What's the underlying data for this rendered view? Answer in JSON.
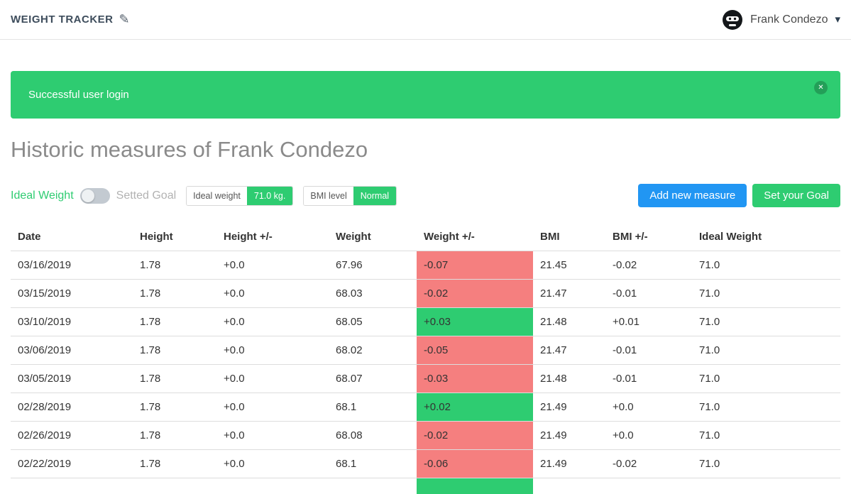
{
  "header": {
    "app_title": "WEIGHT TRACKER",
    "user_name": "Frank Condezo"
  },
  "icons": {
    "edit": "✎",
    "close": "✕",
    "chevron_down": "▾"
  },
  "alert": {
    "message": "Successful user login"
  },
  "page": {
    "title": "Historic measures of Frank Condezo"
  },
  "controls": {
    "ideal_weight_toggle_label": "Ideal Weight",
    "setted_goal_toggle_label": "Setted Goal",
    "ideal_weight_key": "Ideal weight",
    "ideal_weight_value": "71.0 kg.",
    "bmi_key": "BMI level",
    "bmi_value": "Normal",
    "add_measure_button": "Add new measure",
    "set_goal_button": "Set your Goal"
  },
  "table": {
    "columns": [
      "Date",
      "Height",
      "Height +/-",
      "Weight",
      "Weight +/-",
      "BMI",
      "BMI +/-",
      "Ideal Weight"
    ],
    "rows": [
      {
        "date": "03/16/2019",
        "height": "1.78",
        "height_diff": "+0.0",
        "weight": "67.96",
        "weight_diff": "-0.07",
        "weight_diff_color": "red",
        "bmi": "21.45",
        "bmi_diff": "-0.02",
        "ideal_weight": "71.0"
      },
      {
        "date": "03/15/2019",
        "height": "1.78",
        "height_diff": "+0.0",
        "weight": "68.03",
        "weight_diff": "-0.02",
        "weight_diff_color": "red",
        "bmi": "21.47",
        "bmi_diff": "-0.01",
        "ideal_weight": "71.0"
      },
      {
        "date": "03/10/2019",
        "height": "1.78",
        "height_diff": "+0.0",
        "weight": "68.05",
        "weight_diff": "+0.03",
        "weight_diff_color": "green",
        "bmi": "21.48",
        "bmi_diff": "+0.01",
        "ideal_weight": "71.0"
      },
      {
        "date": "03/06/2019",
        "height": "1.78",
        "height_diff": "+0.0",
        "weight": "68.02",
        "weight_diff": "-0.05",
        "weight_diff_color": "red",
        "bmi": "21.47",
        "bmi_diff": "-0.01",
        "ideal_weight": "71.0"
      },
      {
        "date": "03/05/2019",
        "height": "1.78",
        "height_diff": "+0.0",
        "weight": "68.07",
        "weight_diff": "-0.03",
        "weight_diff_color": "red",
        "bmi": "21.48",
        "bmi_diff": "-0.01",
        "ideal_weight": "71.0"
      },
      {
        "date": "02/28/2019",
        "height": "1.78",
        "height_diff": "+0.0",
        "weight": "68.1",
        "weight_diff": "+0.02",
        "weight_diff_color": "green",
        "bmi": "21.49",
        "bmi_diff": "+0.0",
        "ideal_weight": "71.0"
      },
      {
        "date": "02/26/2019",
        "height": "1.78",
        "height_diff": "+0.0",
        "weight": "68.08",
        "weight_diff": "-0.02",
        "weight_diff_color": "red",
        "bmi": "21.49",
        "bmi_diff": "+0.0",
        "ideal_weight": "71.0"
      },
      {
        "date": "02/22/2019",
        "height": "1.78",
        "height_diff": "+0.0",
        "weight": "68.1",
        "weight_diff": "-0.06",
        "weight_diff_color": "red",
        "bmi": "21.49",
        "bmi_diff": "-0.02",
        "ideal_weight": "71.0"
      },
      {
        "date": "",
        "height": "",
        "height_diff": "",
        "weight": "",
        "weight_diff": "",
        "weight_diff_color": "green",
        "bmi": "",
        "bmi_diff": "",
        "ideal_weight": ""
      }
    ]
  },
  "colors": {
    "accent_blue": "#2196f3",
    "success_green": "#2ecc71",
    "danger_red": "#f57f7f"
  }
}
